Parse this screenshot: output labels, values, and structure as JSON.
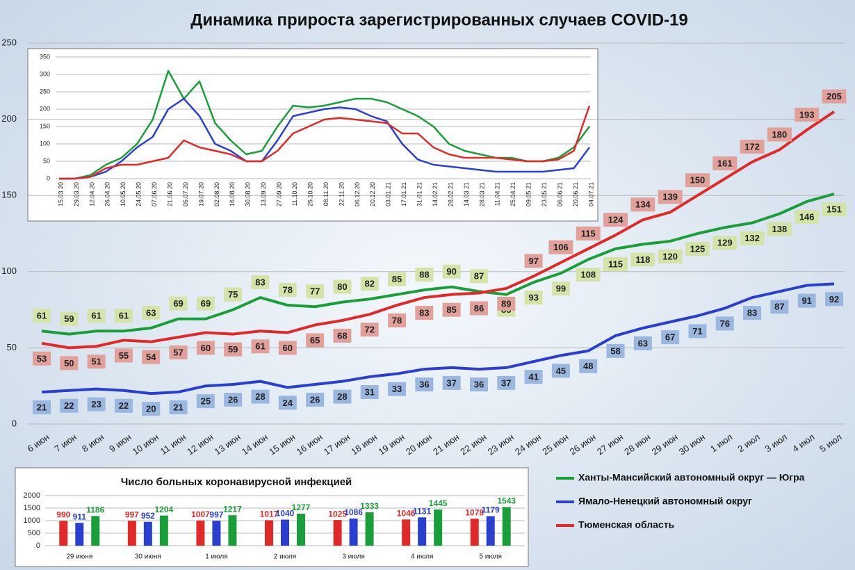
{
  "chart_data": [
    {
      "type": "line",
      "title": "Динамика прироста зарегистрированных случаев COVID-19",
      "categories": [
        "6 июн",
        "7 июн",
        "8 июн",
        "9 июн",
        "10 июн",
        "11 июн",
        "12 июн",
        "13 июн",
        "14 июн",
        "15 июн",
        "16 июн",
        "17 июн",
        "18 июн",
        "19 июн",
        "20 июн",
        "21 июн",
        "22 июн",
        "23 июн",
        "24 июн",
        "25 июн",
        "26 июн",
        "27 июн",
        "28 июн",
        "29 июн",
        "30 июн",
        "1 июл",
        "2 июл",
        "3 июл",
        "4 июл",
        "5 июл"
      ],
      "series": [
        {
          "name": "Ханты-Мансийский автономный округ — Югра",
          "color": "#1a9e3a",
          "label_color": "#d4e4a8",
          "values": [
            61,
            59,
            61,
            61,
            63,
            69,
            69,
            75,
            83,
            78,
            77,
            80,
            82,
            85,
            88,
            90,
            87,
            85,
            93,
            99,
            108,
            115,
            118,
            120,
            125,
            129,
            132,
            138,
            146,
            151
          ]
        },
        {
          "name": "Ямало-Ненецкий автономный округ",
          "color": "#2a3fd0",
          "label_color": "#9bb7e0",
          "values": [
            21,
            22,
            23,
            22,
            20,
            21,
            25,
            26,
            28,
            24,
            26,
            28,
            31,
            33,
            36,
            37,
            36,
            37,
            41,
            45,
            48,
            58,
            63,
            67,
            71,
            76,
            83,
            87,
            91,
            92
          ]
        },
        {
          "name": "Тюменская область",
          "color": "#e02a2a",
          "label_color": "#e2a09a",
          "values": [
            53,
            50,
            51,
            55,
            54,
            57,
            60,
            59,
            61,
            60,
            65,
            68,
            72,
            78,
            83,
            85,
            86,
            89,
            97,
            106,
            115,
            124,
            134,
            139,
            150,
            161,
            172,
            180,
            193,
            205
          ]
        }
      ],
      "ylim": [
        0,
        250
      ],
      "yticks": [
        0,
        50,
        100,
        150,
        200,
        250
      ],
      "grid": true,
      "data_labels": true
    },
    {
      "type": "line",
      "categories": [
        "15.03.20",
        "29.03.20",
        "12.04.20",
        "26.04.20",
        "10.05.20",
        "24.05.20",
        "07.06.20",
        "21.06.20",
        "05.07.20",
        "19.07.20",
        "02.08.20",
        "16.08.20",
        "30.08.20",
        "13.09.20",
        "27.09.20",
        "11.10.20",
        "25.10.20",
        "08.11.20",
        "22.11.20",
        "06.12.20",
        "20.12.20",
        "03.01.21",
        "17.01.21",
        "31.01.21",
        "14.02.21",
        "28.02.21",
        "14.03.21",
        "28.03.21",
        "11.04.21",
        "25.04.21",
        "09.05.21",
        "23.05.21",
        "06.06.21",
        "20.06.21",
        "04.07.21"
      ],
      "series": [
        {
          "color": "#1a9e3a",
          "values": [
            0,
            0,
            10,
            40,
            60,
            100,
            170,
            310,
            230,
            280,
            160,
            110,
            70,
            80,
            150,
            210,
            205,
            210,
            220,
            230,
            230,
            220,
            200,
            180,
            150,
            100,
            80,
            70,
            60,
            60,
            50,
            50,
            60,
            90,
            150
          ]
        },
        {
          "color": "#2a3fd0",
          "values": [
            0,
            0,
            5,
            20,
            50,
            90,
            120,
            200,
            230,
            180,
            100,
            80,
            50,
            50,
            110,
            180,
            190,
            200,
            205,
            200,
            180,
            165,
            100,
            55,
            40,
            35,
            30,
            25,
            20,
            20,
            20,
            20,
            25,
            30,
            90
          ]
        },
        {
          "color": "#e02a2a",
          "values": [
            0,
            0,
            5,
            30,
            40,
            40,
            50,
            60,
            110,
            90,
            80,
            70,
            50,
            50,
            80,
            130,
            150,
            170,
            175,
            170,
            165,
            160,
            130,
            130,
            90,
            70,
            60,
            60,
            60,
            55,
            50,
            50,
            55,
            80,
            210
          ]
        }
      ],
      "ylim": [
        0,
        350
      ],
      "yticks": [
        0,
        50,
        100,
        150,
        200,
        250,
        300,
        350
      ],
      "grid": true,
      "data_labels": false
    },
    {
      "type": "bar",
      "title": "Число больных  коронавирусной  инфекцией",
      "categories": [
        "29 июня",
        "30 июня",
        "1 июля",
        "2 июля",
        "3 июля",
        "4 июля",
        "5 июля"
      ],
      "series": [
        {
          "color": "#e02a2a",
          "values": [
            990,
            997,
            1007,
            1017,
            1025,
            1046,
            1078
          ]
        },
        {
          "color": "#2a3fd0",
          "values": [
            911,
            952,
            997,
            1040,
            1086,
            1131,
            1179
          ]
        },
        {
          "color": "#1a9e3a",
          "values": [
            1186,
            1204,
            1217,
            1277,
            1333,
            1445,
            1543
          ]
        }
      ],
      "ylim": [
        0,
        2000
      ],
      "yticks": [
        0,
        500,
        1000,
        1500,
        2000
      ],
      "grid": true,
      "data_labels": true
    }
  ]
}
